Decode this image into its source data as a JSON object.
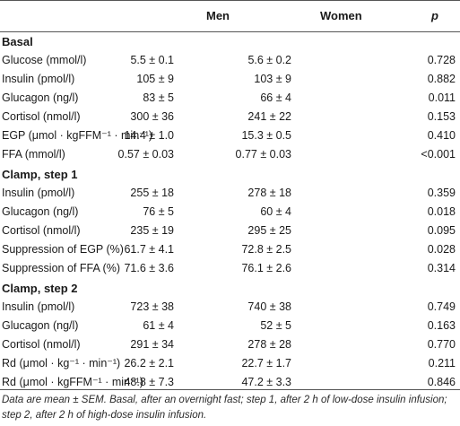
{
  "header": {
    "col0": "",
    "col1": "Men",
    "col2": "Women",
    "col3": "p"
  },
  "sections": [
    {
      "title": "Basal",
      "rows": [
        {
          "label": "Glucose (mmol/l)",
          "men": "5.5 ± 0.1",
          "women": "5.6 ± 0.2",
          "p": "0.728"
        },
        {
          "label": "Insulin (pmol/l)",
          "men": "105 ± 9",
          "women": "103 ± 9",
          "p": "0.882"
        },
        {
          "label": "Glucagon (ng/l)",
          "men": "83 ± 5",
          "women": "66 ± 4",
          "p": "0.011"
        },
        {
          "label": "Cortisol (nmol/l)",
          "men": "300 ± 36",
          "women": "241 ± 22",
          "p": "0.153"
        },
        {
          "label": "EGP (μmol · kgFFM⁻¹ · min⁻¹)",
          "men": "14.4 ± 1.0",
          "women": "15.3 ± 0.5",
          "p": "0.410"
        },
        {
          "label": "FFA (mmol/l)",
          "men": "0.57 ± 0.03",
          "women": "0.77 ± 0.03",
          "p": "<0.001"
        }
      ]
    },
    {
      "title": "Clamp, step 1",
      "rows": [
        {
          "label": "Insulin (pmol/l)",
          "men": "255 ± 18",
          "women": "278 ± 18",
          "p": "0.359"
        },
        {
          "label": "Glucagon (ng/l)",
          "men": "76 ± 5",
          "women": "60 ± 4",
          "p": "0.018"
        },
        {
          "label": "Cortisol (nmol/l)",
          "men": "235 ± 19",
          "women": "295 ± 25",
          "p": "0.095"
        },
        {
          "label": "Suppression of EGP (%)",
          "men": "61.7 ± 4.1",
          "women": "72.8 ± 2.5",
          "p": "0.028"
        },
        {
          "label": "Suppression of FFA (%)",
          "men": "71.6 ± 3.6",
          "women": "76.1 ± 2.6",
          "p": "0.314"
        }
      ]
    },
    {
      "title": "Clamp, step 2",
      "rows": [
        {
          "label": "Insulin (pmol/l)",
          "men": "723 ± 38",
          "women": "740 ± 38",
          "p": "0.749"
        },
        {
          "label": "Glucagon (ng/l)",
          "men": "61 ± 4",
          "women": "52 ± 5",
          "p": "0.163"
        },
        {
          "label": "Cortisol (nmol/l)",
          "men": "291 ± 34",
          "women": "278 ± 28",
          "p": "0.770"
        },
        {
          "label": "Rd (μmol · kg⁻¹ · min⁻¹)",
          "men": "26.2 ± 2.1",
          "women": "22.7 ± 1.7",
          "p": "0.211"
        },
        {
          "label": "Rd (μmol · kgFFM⁻¹ · min⁻¹)",
          "men": "48.8 ± 7.3",
          "women": "47.2 ± 3.3",
          "p": "0.846"
        }
      ]
    }
  ],
  "footnote": "Data are mean ± SEM. Basal, after an overnight fast; step 1, after 2 h of low-dose insulin infusion; step 2, after 2 h of high-dose insulin infusion."
}
